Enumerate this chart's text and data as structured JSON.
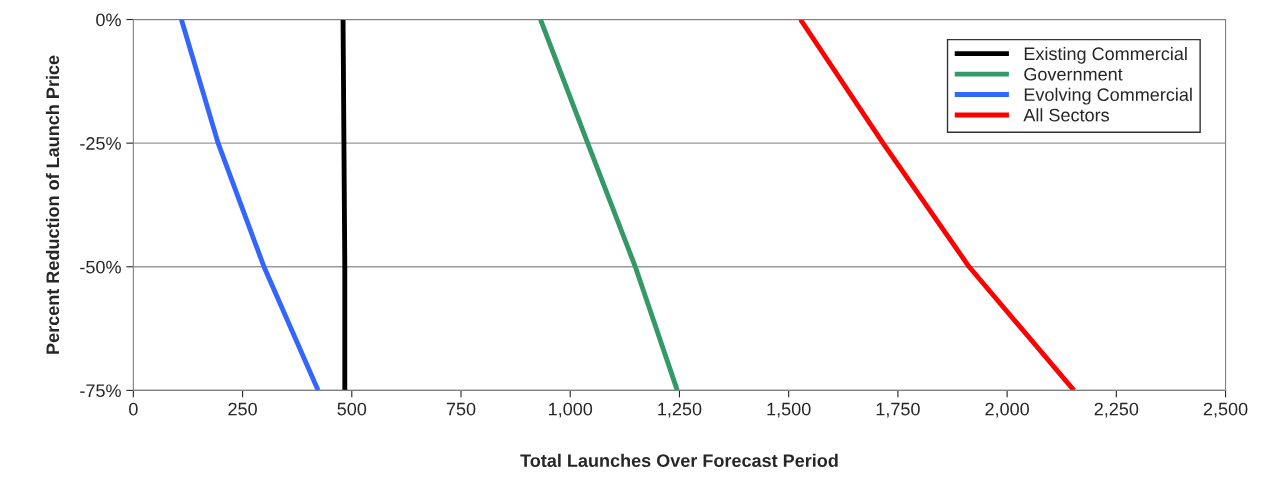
{
  "chart_data": {
    "type": "line",
    "xlabel": "Total Launches Over Forecast Period",
    "ylabel": "Percent Reduction of Launch Price",
    "series": [
      {
        "name": "Existing Commercial",
        "color": "#000000",
        "x": [
          480,
          482,
          484,
          484
        ],
        "values": [
          0,
          -25,
          -50,
          -75
        ]
      },
      {
        "name": "Government",
        "color": "#339966",
        "x": [
          932,
          1040,
          1149,
          1245
        ],
        "values": [
          0,
          -25,
          -50,
          -75
        ]
      },
      {
        "name": "Evolving Commercial",
        "color": "#3366ff",
        "x": [
          110,
          194,
          299,
          423
        ],
        "values": [
          0,
          -25,
          -50,
          -75
        ]
      },
      {
        "name": "All Sectors",
        "color": "#ff0000",
        "x": [
          1527,
          1716,
          1913,
          2153
        ],
        "values": [
          0,
          -25,
          -50,
          -75
        ]
      }
    ],
    "xlim": [
      0,
      2500
    ],
    "xticks": [
      0,
      250,
      500,
      750,
      {
        "value": 1000,
        "label": "1,000"
      },
      {
        "value": 1250,
        "label": "1,250"
      },
      {
        "value": 1500,
        "label": "1,500"
      },
      {
        "value": 1750,
        "label": "1,750"
      },
      {
        "value": 2000,
        "label": "2,000"
      },
      {
        "value": 2250,
        "label": "2,250"
      },
      {
        "value": 2500,
        "label": "2,500"
      }
    ],
    "ylim": [
      -75,
      0
    ],
    "yticks": [
      {
        "value": -75,
        "label": "-75%"
      },
      {
        "value": -50,
        "label": "-50%"
      },
      {
        "value": -25,
        "label": "-25%"
      },
      {
        "value": 0,
        "label": "0%"
      }
    ],
    "grid": "y",
    "legend": "top right",
    "marker": "none",
    "line_style": "solid"
  }
}
